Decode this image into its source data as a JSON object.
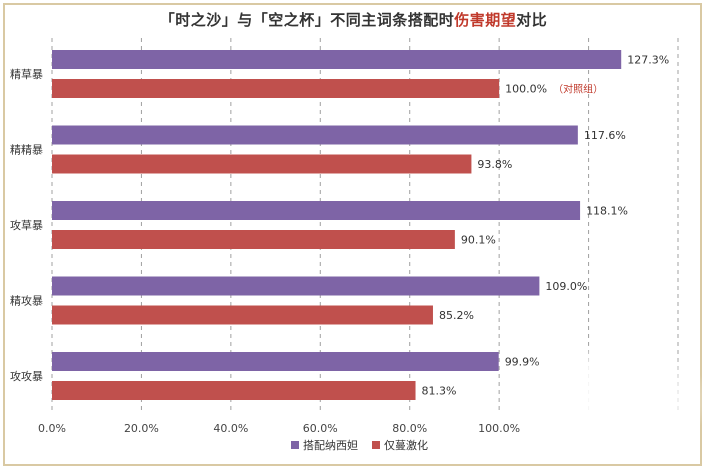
{
  "chart_data": {
    "type": "bar",
    "orientation": "horizontal",
    "title": {
      "prefix": "「时之沙」与「空之杯」不同主词条搭配时",
      "highlight": "伤害期望",
      "suffix": "对比"
    },
    "categories": [
      "精草暴",
      "精精暴",
      "攻草暴",
      "精攻暴",
      "攻攻暴"
    ],
    "series": [
      {
        "name": "搭配纳西妲",
        "color": "#7e64a6",
        "values": [
          127.3,
          117.6,
          118.1,
          109.0,
          99.9
        ],
        "labels": [
          "127.3%",
          "117.6%",
          "118.1%",
          "109.0%",
          "99.9%"
        ]
      },
      {
        "name": "仅蔓激化",
        "color": "#c0504d",
        "values": [
          100.0,
          93.8,
          90.1,
          85.2,
          81.3
        ],
        "labels": [
          "100.0%",
          "93.8%",
          "90.1%",
          "85.2%",
          "81.3%"
        ]
      }
    ],
    "annotation": {
      "text": "（对照组）",
      "color": "#c0392b"
    },
    "xlim": [
      0,
      140
    ],
    "xticks": [
      0,
      20,
      40,
      60,
      80,
      100
    ],
    "xtick_labels": [
      "0.0%",
      "20.0%",
      "40.0%",
      "60.0%",
      "80.0%",
      "100.0%"
    ],
    "gridlines": [
      0,
      20,
      40,
      60,
      80,
      100,
      120,
      140
    ],
    "grid": true,
    "legend_position": "bottom"
  }
}
